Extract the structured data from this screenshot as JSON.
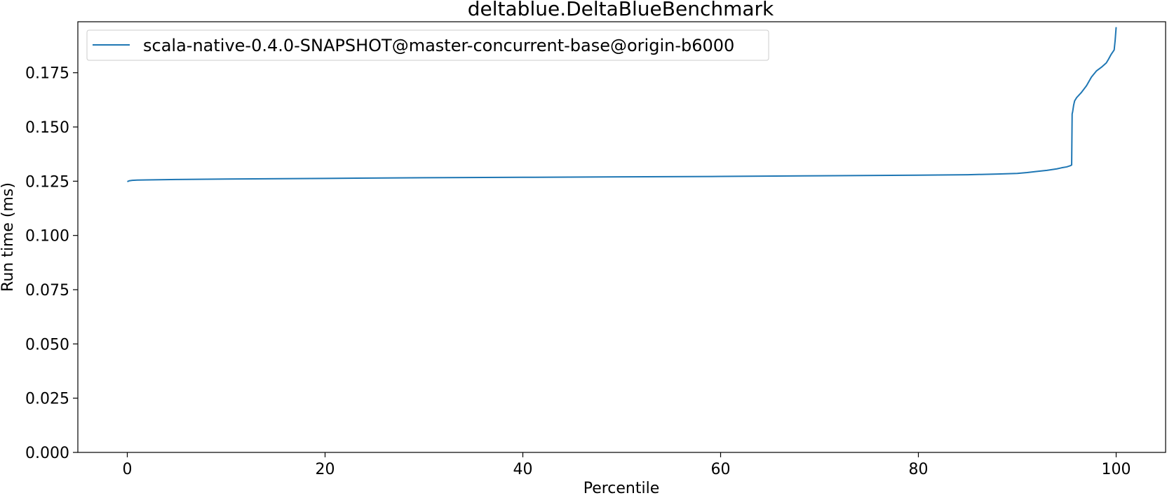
{
  "chart_data": {
    "type": "line",
    "title": "deltablue.DeltaBlueBenchmark",
    "xlabel": "Percentile",
    "ylabel": "Run time (ms)",
    "xlim": [
      -5,
      105
    ],
    "ylim": [
      0.0,
      0.1985
    ],
    "xticks": [
      0,
      20,
      40,
      60,
      80,
      100
    ],
    "xtick_labels": [
      "0",
      "20",
      "40",
      "60",
      "80",
      "100"
    ],
    "yticks": [
      0.0,
      0.025,
      0.05,
      0.075,
      0.1,
      0.125,
      0.15,
      0.175
    ],
    "ytick_labels": [
      "0.000",
      "0.025",
      "0.050",
      "0.075",
      "0.100",
      "0.125",
      "0.150",
      "0.175"
    ],
    "grid": false,
    "legend": "top-left",
    "series": [
      {
        "name": "scala-native-0.4.0-SNAPSHOT@master-concurrent-base@origin-b6000",
        "color": "#1f77b4",
        "x": [
          0,
          0.2,
          0.5,
          1,
          2,
          5,
          10,
          20,
          30,
          40,
          50,
          60,
          70,
          80,
          85,
          88,
          90,
          91,
          92,
          93,
          94,
          94.5,
          95,
          95.4,
          95.5,
          95.55,
          95.6,
          95.7,
          95.8,
          96,
          96.5,
          97,
          97.5,
          98,
          98.5,
          99,
          99.2,
          99.5,
          99.8,
          99.9,
          100
        ],
        "y": [
          0.1248,
          0.1252,
          0.1254,
          0.1255,
          0.1256,
          0.1258,
          0.126,
          0.1263,
          0.1266,
          0.1268,
          0.127,
          0.1272,
          0.1275,
          0.1278,
          0.128,
          0.1283,
          0.1286,
          0.129,
          0.1295,
          0.13,
          0.1307,
          0.1312,
          0.1316,
          0.1322,
          0.1325,
          0.156,
          0.157,
          0.16,
          0.162,
          0.1635,
          0.166,
          0.169,
          0.173,
          0.1758,
          0.1775,
          0.1795,
          0.181,
          0.1835,
          0.1855,
          0.19,
          0.196
        ]
      }
    ]
  }
}
